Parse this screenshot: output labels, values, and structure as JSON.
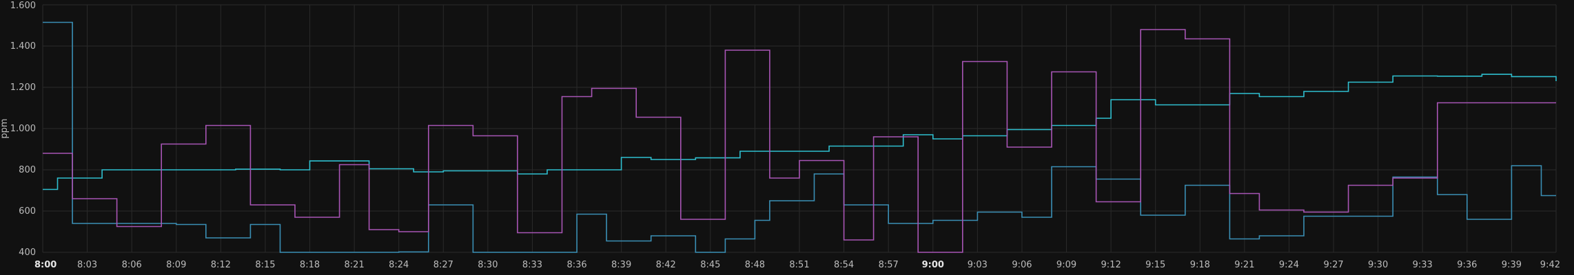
{
  "chart_data": {
    "type": "line",
    "title": "",
    "xlabel": "",
    "ylabel": "ppm",
    "ylim": [
      400,
      1600
    ],
    "xlim_minutes": [
      0,
      102
    ],
    "y_ticks": [
      {
        "value": 400,
        "label": "400"
      },
      {
        "value": 600,
        "label": "600"
      },
      {
        "value": 800,
        "label": "800"
      },
      {
        "value": 1000,
        "label": "1.000"
      },
      {
        "value": 1200,
        "label": "1.200"
      },
      {
        "value": 1400,
        "label": "1.400"
      },
      {
        "value": 1600,
        "label": "1.600"
      }
    ],
    "x_ticks": [
      {
        "minute": 0,
        "label": "8:00",
        "major": true
      },
      {
        "minute": 3,
        "label": "8:03"
      },
      {
        "minute": 6,
        "label": "8:06"
      },
      {
        "minute": 9,
        "label": "8:09"
      },
      {
        "minute": 12,
        "label": "8:12"
      },
      {
        "minute": 15,
        "label": "8:15"
      },
      {
        "minute": 18,
        "label": "8:18"
      },
      {
        "minute": 21,
        "label": "8:21"
      },
      {
        "minute": 24,
        "label": "8:24"
      },
      {
        "minute": 27,
        "label": "8:27"
      },
      {
        "minute": 30,
        "label": "8:30"
      },
      {
        "minute": 33,
        "label": "8:33"
      },
      {
        "minute": 36,
        "label": "8:36"
      },
      {
        "minute": 39,
        "label": "8:39"
      },
      {
        "minute": 42,
        "label": "8:42"
      },
      {
        "minute": 45,
        "label": "8:45"
      },
      {
        "minute": 48,
        "label": "8:48"
      },
      {
        "minute": 51,
        "label": "8:51"
      },
      {
        "minute": 54,
        "label": "8:54"
      },
      {
        "minute": 57,
        "label": "8:57"
      },
      {
        "minute": 60,
        "label": "9:00",
        "major": true
      },
      {
        "minute": 63,
        "label": "9:03"
      },
      {
        "minute": 66,
        "label": "9:06"
      },
      {
        "minute": 69,
        "label": "9:09"
      },
      {
        "minute": 72,
        "label": "9:12"
      },
      {
        "minute": 75,
        "label": "9:15"
      },
      {
        "minute": 78,
        "label": "9:18"
      },
      {
        "minute": 81,
        "label": "9:21"
      },
      {
        "minute": 84,
        "label": "9:24"
      },
      {
        "minute": 87,
        "label": "9:27"
      },
      {
        "minute": 90,
        "label": "9:30"
      },
      {
        "minute": 93,
        "label": "9:33"
      },
      {
        "minute": 96,
        "label": "9:36"
      },
      {
        "minute": 99,
        "label": "9:39"
      },
      {
        "minute": 102,
        "label": "9:42"
      }
    ],
    "grid": true,
    "step": "after",
    "series": [
      {
        "color": "#2fc0d0",
        "x": [
          0,
          1,
          4,
          13,
          16,
          18,
          22,
          25,
          27,
          32,
          34,
          39,
          41,
          44,
          47,
          53,
          58,
          60,
          62,
          65,
          68,
          71,
          72,
          75,
          80,
          82,
          85,
          88,
          91,
          94,
          97,
          99,
          102
        ],
        "y": [
          705,
          760,
          800,
          803,
          800,
          843,
          805,
          790,
          795,
          780,
          800,
          860,
          850,
          858,
          890,
          915,
          970,
          950,
          965,
          995,
          1015,
          1050,
          1140,
          1115,
          1170,
          1155,
          1180,
          1225,
          1255,
          1254,
          1263,
          1252,
          1230
        ]
      },
      {
        "color": "#3a8fb5",
        "x": [
          0,
          2,
          9,
          11,
          14,
          16,
          24,
          26,
          29,
          30,
          36,
          38,
          41,
          44,
          46,
          48,
          49,
          52,
          54,
          57,
          60,
          63,
          66,
          68,
          71,
          72,
          74,
          77,
          80,
          82,
          85,
          86,
          88,
          91,
          94,
          96,
          99,
          101,
          102
        ],
        "y": [
          1515,
          540,
          535,
          470,
          535,
          400,
          402,
          630,
          400,
          400,
          585,
          455,
          480,
          400,
          465,
          555,
          650,
          780,
          630,
          540,
          555,
          595,
          570,
          815,
          755,
          755,
          580,
          725,
          465,
          480,
          575,
          575,
          575,
          765,
          680,
          560,
          820,
          675,
          675
        ]
      },
      {
        "color": "#a855b5",
        "x": [
          0,
          2,
          5,
          8,
          11,
          14,
          17,
          20,
          22,
          24,
          26,
          29,
          32,
          35,
          37,
          40,
          43,
          46,
          49,
          51,
          54,
          56,
          59,
          62,
          65,
          68,
          71,
          74,
          77,
          80,
          82,
          85,
          88,
          91,
          94,
          97,
          100,
          102
        ],
        "y": [
          880,
          660,
          525,
          925,
          1015,
          630,
          570,
          825,
          510,
          500,
          1015,
          965,
          495,
          1155,
          1195,
          1055,
          560,
          1380,
          760,
          845,
          460,
          960,
          400,
          1325,
          910,
          1275,
          645,
          1480,
          1435,
          685,
          605,
          595,
          725,
          760,
          1125,
          1125,
          1125,
          1125
        ]
      }
    ]
  }
}
